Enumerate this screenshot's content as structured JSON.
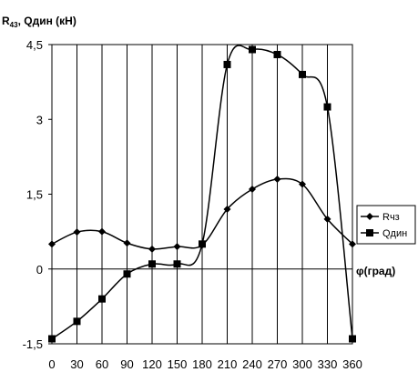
{
  "chart_data": {
    "type": "line",
    "ylabel": {
      "main": "R",
      "sub": "43",
      "rest": ", Qдин (кН)"
    },
    "xlabel": "φ(град)",
    "xlim": [
      0,
      360
    ],
    "ylim": [
      -1.5,
      4.5
    ],
    "x_ticks": [
      0,
      30,
      60,
      90,
      120,
      150,
      180,
      210,
      240,
      270,
      300,
      330,
      360
    ],
    "y_ticks": [
      {
        "value": -1.5,
        "label": "-1,5"
      },
      {
        "value": 0,
        "label": "0"
      },
      {
        "value": 1.5,
        "label": "1,5"
      },
      {
        "value": 3,
        "label": "3"
      },
      {
        "value": 4.5,
        "label": "4,5"
      }
    ],
    "grid": {
      "vertical": true,
      "horizontal": false
    },
    "legend_position": "right",
    "x": [
      0,
      30,
      60,
      90,
      120,
      150,
      180,
      210,
      240,
      270,
      300,
      330,
      360
    ],
    "series": [
      {
        "name": "Rчз",
        "marker": "diamond",
        "values": [
          0.5,
          0.74,
          0.75,
          0.52,
          0.4,
          0.45,
          0.48,
          1.2,
          1.6,
          1.8,
          1.7,
          1.0,
          0.5
        ]
      },
      {
        "name": "Qдин",
        "marker": "square",
        "values": [
          -1.4,
          -1.05,
          -0.6,
          -0.1,
          0.1,
          0.1,
          0.5,
          4.1,
          4.4,
          4.3,
          3.9,
          3.25,
          -1.4
        ]
      }
    ]
  }
}
